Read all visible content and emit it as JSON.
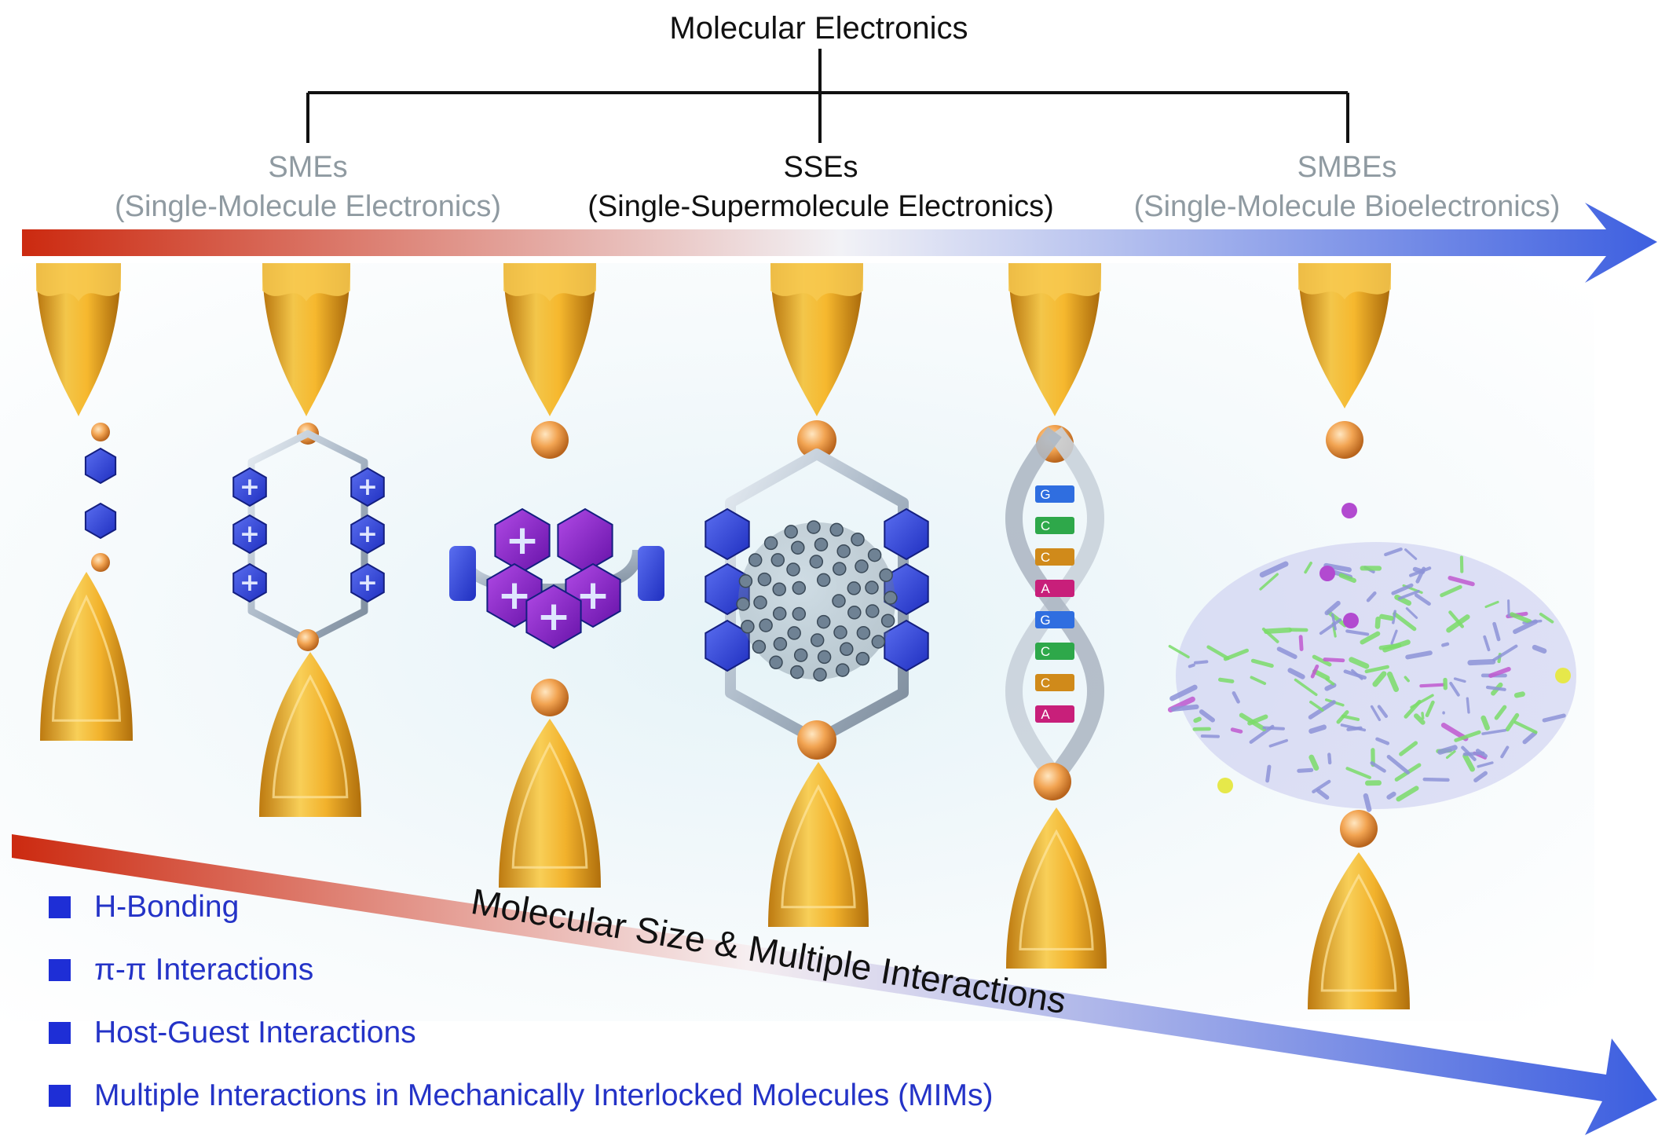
{
  "title": "Molecular Electronics",
  "categories": [
    {
      "abbr": "SMEs",
      "full": "(Single-Molecule Electronics)"
    },
    {
      "abbr": "SSEs",
      "full": "(Single-Supermolecule Electronics)"
    },
    {
      "abbr": "SMBEs",
      "full": "(Single-Molecule Bioelectronics)"
    }
  ],
  "junctions": {
    "ring_symbol": "+",
    "dna_bases": [
      "G",
      "C",
      "C",
      "A",
      "G",
      "C",
      "C",
      "A"
    ]
  },
  "diagonal_arrow_label": "Molecular Size & Multiple Interactions",
  "legend": [
    "H-Bonding",
    "π-π Interactions",
    "Host-Guest Interactions",
    "Multiple Interactions in Mechanically Interlocked Molecules (MIMs)"
  ],
  "colors": {
    "arrow_start": "#cc2a10",
    "arrow_mid": "#f2f2f6",
    "arrow_end": "#3d5fe0",
    "gold": "#f0b030",
    "blue_hex": "#2b3fd4",
    "purple_hex": "#8a1fc2",
    "legend_text": "#2433c7"
  }
}
